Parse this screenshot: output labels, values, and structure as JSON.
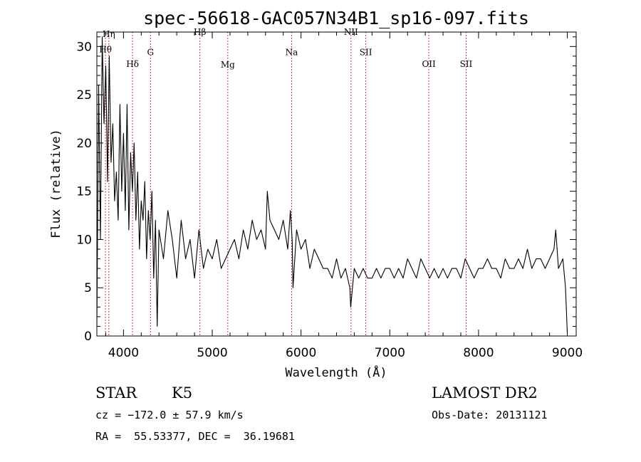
{
  "chart_data": {
    "type": "line",
    "title": "spec-56618-GAC057N34B1_sp16-097.fits",
    "xlabel": "Wavelength (Å)",
    "ylabel": "Flux (relative)",
    "xlim": [
      3700,
      9100
    ],
    "ylim": [
      0,
      31.5
    ],
    "xticks": [
      4000,
      5000,
      6000,
      7000,
      8000,
      9000
    ],
    "yticks": [
      0,
      5,
      10,
      15,
      20,
      25,
      30
    ],
    "grid": false,
    "series": [
      {
        "x": [
          3700,
          3720,
          3740,
          3760,
          3780,
          3800,
          3820,
          3840,
          3860,
          3880,
          3900,
          3920,
          3940,
          3960,
          3980,
          4000,
          4020,
          4040,
          4060,
          4080,
          4100,
          4120,
          4140,
          4160,
          4180,
          4200,
          4220,
          4240,
          4260,
          4280,
          4300,
          4320,
          4340,
          4360,
          4380,
          4400,
          4450,
          4500,
          4550,
          4600,
          4650,
          4700,
          4750,
          4800,
          4850,
          4900,
          4950,
          5000,
          5050,
          5100,
          5150,
          5200,
          5250,
          5300,
          5350,
          5400,
          5450,
          5500,
          5550,
          5600,
          5620,
          5650,
          5700,
          5750,
          5800,
          5850,
          5880,
          5900,
          5910,
          5950,
          6000,
          6050,
          6100,
          6150,
          6200,
          6250,
          6300,
          6350,
          6400,
          6450,
          6500,
          6550,
          6560,
          6600,
          6650,
          6700,
          6750,
          6800,
          6850,
          6900,
          6950,
          7000,
          7050,
          7100,
          7150,
          7200,
          7250,
          7300,
          7350,
          7400,
          7450,
          7500,
          7550,
          7600,
          7650,
          7700,
          7750,
          7800,
          7850,
          7900,
          7950,
          8000,
          8050,
          8100,
          8150,
          8200,
          8250,
          8300,
          8350,
          8400,
          8450,
          8500,
          8550,
          8600,
          8650,
          8700,
          8750,
          8800,
          8850,
          8870,
          8900,
          8950,
          8980,
          9000
        ],
        "y": [
          1,
          26,
          10,
          31,
          22,
          28,
          16,
          29,
          18,
          22,
          14,
          17,
          12,
          24,
          15,
          21,
          13,
          24,
          11,
          19,
          15,
          20,
          12,
          17,
          9,
          14,
          12,
          16,
          8,
          13,
          10,
          15,
          6,
          12,
          1,
          11,
          8,
          13,
          10,
          6,
          12,
          8,
          10,
          6,
          11,
          7,
          9,
          8,
          10,
          7,
          8,
          9,
          10,
          8,
          11,
          9,
          12,
          10,
          11,
          9,
          15,
          12,
          11,
          10,
          12,
          9,
          13,
          10,
          5,
          11,
          9,
          10,
          7,
          9,
          8,
          7,
          7,
          6,
          8,
          6,
          7,
          5,
          3,
          7,
          6,
          7,
          6,
          6,
          7,
          6,
          7,
          7,
          6,
          7,
          6,
          8,
          7,
          6,
          8,
          7,
          6,
          7,
          6,
          7,
          6,
          7,
          7,
          6,
          8,
          7,
          6,
          7,
          7,
          8,
          7,
          7,
          6,
          8,
          7,
          7,
          8,
          7,
          9,
          7,
          8,
          8,
          7,
          8,
          9,
          11,
          7,
          8,
          5,
          0.3
        ]
      }
    ],
    "line_markers": [
      {
        "label": "Hη",
        "x": 3835,
        "label_y": 31
      },
      {
        "label": "Hθ",
        "x": 3797,
        "label_y": 29.4
      },
      {
        "label": "Hδ",
        "x": 4102,
        "label_y": 27.9
      },
      {
        "label": "G",
        "x": 4304,
        "label_y": 29.1
      },
      {
        "label": "Hβ",
        "x": 4861,
        "label_y": 31.2
      },
      {
        "label": "Mg",
        "x": 5175,
        "label_y": 27.8
      },
      {
        "label": "Na",
        "x": 5894,
        "label_y": 29.1
      },
      {
        "label": "NII",
        "x": 6563,
        "label_y": 31.2
      },
      {
        "label": "SII",
        "x": 6730,
        "label_y": 29.1
      },
      {
        "label": "OII",
        "x": 7440,
        "label_y": 27.9
      },
      {
        "label": "SII",
        "x": 7860,
        "label_y": 27.9
      }
    ]
  },
  "info": {
    "class_type": "STAR",
    "subclass": "K5",
    "survey": "LAMOST DR2",
    "cz": "cz = −172.0 ± 57.9 km/s",
    "obs_date": "Obs-Date: 20131121",
    "radec": "RA =  55.53377, DEC =  36.19681"
  },
  "colors": {
    "spectrum": "#000000",
    "marker_line": "#c00000",
    "axis": "#000000"
  }
}
